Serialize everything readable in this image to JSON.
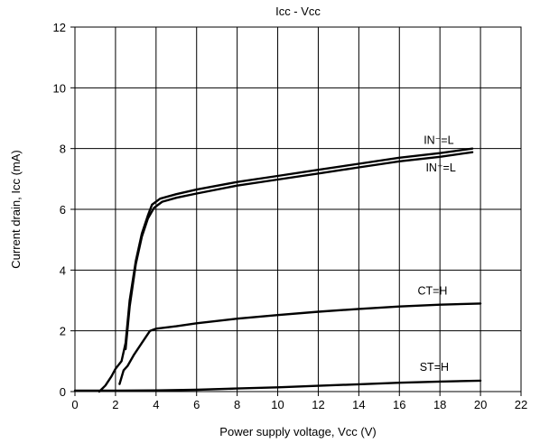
{
  "chart_data": {
    "type": "line",
    "title": "Icc - Vcc",
    "xlabel": "Power supply voltage, Vcc (V)",
    "ylabel": "Current drain, Icc (mA)",
    "xlim": [
      0,
      22
    ],
    "ylim": [
      0,
      12
    ],
    "x_ticks": [
      "0",
      "2",
      "4",
      "6",
      "8",
      "10",
      "12",
      "14",
      "16",
      "18",
      "20",
      "22"
    ],
    "y_ticks": [
      "0",
      "2",
      "4",
      "6",
      "8",
      "10",
      "12"
    ],
    "grid": true,
    "series": [
      {
        "name": "IN⁻=L",
        "points": [
          [
            1.2,
            0.0
          ],
          [
            1.5,
            0.2
          ],
          [
            1.8,
            0.5
          ],
          [
            2.0,
            0.75
          ],
          [
            2.3,
            1.0
          ],
          [
            2.5,
            1.6
          ],
          [
            2.7,
            3.0
          ],
          [
            3.0,
            4.3
          ],
          [
            3.3,
            5.2
          ],
          [
            3.6,
            5.8
          ],
          [
            3.8,
            6.15
          ],
          [
            4.2,
            6.35
          ],
          [
            5.0,
            6.5
          ],
          [
            6.0,
            6.65
          ],
          [
            8.0,
            6.9
          ],
          [
            10.0,
            7.1
          ],
          [
            12.0,
            7.3
          ],
          [
            14.0,
            7.5
          ],
          [
            16.0,
            7.7
          ],
          [
            18.0,
            7.85
          ],
          [
            19.6,
            8.0
          ]
        ]
      },
      {
        "name": "IN⁺=L",
        "points": [
          [
            2.5,
            1.4
          ],
          [
            2.7,
            2.8
          ],
          [
            3.0,
            4.2
          ],
          [
            3.3,
            5.1
          ],
          [
            3.6,
            5.7
          ],
          [
            3.9,
            6.05
          ],
          [
            4.3,
            6.25
          ],
          [
            5.0,
            6.38
          ],
          [
            6.0,
            6.52
          ],
          [
            8.0,
            6.78
          ],
          [
            10.0,
            6.98
          ],
          [
            12.0,
            7.18
          ],
          [
            14.0,
            7.38
          ],
          [
            16.0,
            7.58
          ],
          [
            18.0,
            7.73
          ],
          [
            19.6,
            7.88
          ]
        ]
      },
      {
        "name": "CT=H",
        "points": [
          [
            2.2,
            0.25
          ],
          [
            2.4,
            0.7
          ],
          [
            2.6,
            0.85
          ],
          [
            2.9,
            1.2
          ],
          [
            3.3,
            1.6
          ],
          [
            3.7,
            2.0
          ],
          [
            4.0,
            2.07
          ],
          [
            5.0,
            2.15
          ],
          [
            6.0,
            2.25
          ],
          [
            8.0,
            2.4
          ],
          [
            10.0,
            2.52
          ],
          [
            12.0,
            2.63
          ],
          [
            14.0,
            2.72
          ],
          [
            16.0,
            2.8
          ],
          [
            18.0,
            2.86
          ],
          [
            20.0,
            2.9
          ]
        ]
      },
      {
        "name": "ST=H",
        "points": [
          [
            0.0,
            0.03
          ],
          [
            2.0,
            0.03
          ],
          [
            4.0,
            0.04
          ],
          [
            6.0,
            0.06
          ],
          [
            8.0,
            0.1
          ],
          [
            10.0,
            0.14
          ],
          [
            12.0,
            0.19
          ],
          [
            14.0,
            0.24
          ],
          [
            16.0,
            0.29
          ],
          [
            18.0,
            0.33
          ],
          [
            20.0,
            0.36
          ]
        ]
      }
    ],
    "annotations": [
      {
        "text": "IN⁻=L",
        "x": 17.2,
        "y": 8.15
      },
      {
        "text": "IN⁺=L",
        "x": 17.3,
        "y": 7.25
      },
      {
        "text": "CT=H",
        "x": 16.9,
        "y": 3.2
      },
      {
        "text": "ST=H",
        "x": 17.0,
        "y": 0.68
      }
    ]
  }
}
